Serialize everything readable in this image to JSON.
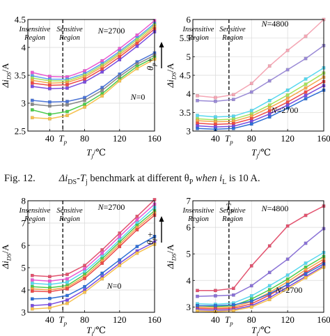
{
  "caption": {
    "fig_label": "Fig. 12.",
    "text_parts": [
      "Δi",
      "DS",
      "-T",
      "j",
      " benchmark at different θ",
      "P",
      " when i",
      "L",
      " is 10 A."
    ]
  },
  "chart_data": [
    {
      "type": "line",
      "ylabel": "Δi_DS/A",
      "xlabel": "T_j/℃",
      "xlim": [
        15,
        160
      ],
      "ylim": [
        2.5,
        4.5
      ],
      "yticks": [
        "2.5",
        "3",
        "3.5",
        "4",
        "4.5"
      ],
      "xticks": [
        "40",
        "T_p",
        "80",
        "120",
        "160"
      ],
      "tp": 55,
      "regions": [
        "Insensitive Region",
        "Sensitive Region"
      ],
      "annotations": [
        "N=2700",
        "N=0",
        "θ_p+"
      ],
      "x": [
        20,
        40,
        60,
        80,
        100,
        120,
        140,
        160
      ],
      "series": [
        {
          "color": "#e95ad2",
          "values": [
            3.55,
            3.48,
            3.47,
            3.58,
            3.76,
            3.98,
            4.22,
            4.48
          ]
        },
        {
          "color": "#5aa0f0",
          "values": [
            3.49,
            3.43,
            3.43,
            3.53,
            3.71,
            3.93,
            4.17,
            4.43
          ]
        },
        {
          "color": "#a6e35a",
          "values": [
            3.45,
            3.4,
            3.4,
            3.5,
            3.68,
            3.9,
            4.14,
            4.4
          ]
        },
        {
          "color": "#f5a74b",
          "values": [
            3.41,
            3.36,
            3.37,
            3.47,
            3.65,
            3.87,
            4.1,
            4.37
          ]
        },
        {
          "color": "#ee4a4a",
          "values": [
            3.36,
            3.32,
            3.33,
            3.43,
            3.61,
            3.83,
            4.07,
            4.33
          ]
        },
        {
          "color": "#7a4de0",
          "values": [
            3.3,
            3.26,
            3.27,
            3.38,
            3.56,
            3.78,
            4.02,
            4.28
          ]
        },
        {
          "color": "#4a73d6",
          "values": [
            3.05,
            3.02,
            3.03,
            3.1,
            3.28,
            3.52,
            3.74,
            3.9
          ]
        },
        {
          "color": "#888888",
          "values": [
            2.98,
            2.95,
            2.97,
            3.05,
            3.23,
            3.48,
            3.7,
            3.86
          ]
        },
        {
          "color": "#4ccc4c",
          "values": [
            2.88,
            2.8,
            2.85,
            2.98,
            3.17,
            3.43,
            3.66,
            3.82
          ]
        },
        {
          "color": "#f6c14f",
          "values": [
            2.74,
            2.72,
            2.78,
            2.93,
            3.13,
            3.4,
            3.62,
            3.79
          ]
        }
      ]
    },
    {
      "type": "line",
      "ylabel": "Δi_DS/A",
      "xlabel": "T_j/℃",
      "xlim": [
        15,
        160
      ],
      "ylim": [
        3,
        6
      ],
      "yticks": [
        "3",
        "3.5",
        "4",
        "4.5",
        "5",
        "5.5",
        "6"
      ],
      "xticks": [
        "40",
        "T_p",
        "80",
        "120",
        "160"
      ],
      "tp": 55,
      "regions": [
        "Insensitive Region",
        "Sensitive Region"
      ],
      "annotations": [
        "N=4800",
        "N=2700"
      ],
      "x": [
        20,
        40,
        60,
        80,
        100,
        120,
        140,
        160
      ],
      "series": [
        {
          "color": "#f4a6b4",
          "values": [
            3.95,
            3.9,
            3.98,
            4.28,
            4.75,
            5.17,
            5.55,
            6.0
          ]
        },
        {
          "color": "#9a8ad6",
          "values": [
            3.82,
            3.8,
            3.85,
            4.05,
            4.35,
            4.65,
            4.95,
            5.3
          ]
        },
        {
          "color": "#58d8ef",
          "values": [
            3.42,
            3.38,
            3.4,
            3.55,
            3.82,
            4.1,
            4.4,
            4.7
          ]
        },
        {
          "color": "#a6e35a",
          "values": [
            3.33,
            3.3,
            3.32,
            3.46,
            3.7,
            3.97,
            4.26,
            4.56
          ]
        },
        {
          "color": "#f5a74b",
          "values": [
            3.28,
            3.25,
            3.26,
            3.4,
            3.63,
            3.88,
            4.16,
            4.45
          ]
        },
        {
          "color": "#ee4a4a",
          "values": [
            3.21,
            3.18,
            3.2,
            3.33,
            3.54,
            3.78,
            4.05,
            4.33
          ]
        },
        {
          "color": "#7a4de0",
          "values": [
            3.14,
            3.11,
            3.13,
            3.26,
            3.46,
            3.7,
            3.96,
            4.22
          ]
        },
        {
          "color": "#2f6fd6",
          "values": [
            3.07,
            3.05,
            3.07,
            3.19,
            3.38,
            3.62,
            3.87,
            4.1
          ]
        }
      ]
    },
    {
      "type": "line",
      "ylabel": "Δi_DS/A",
      "xlabel": "T_j/℃",
      "xlim": [
        15,
        160
      ],
      "ylim": [
        3,
        8
      ],
      "yticks": [
        "3",
        "4",
        "5",
        "6",
        "7",
        "8"
      ],
      "xticks": [
        "40",
        "T_p",
        "80",
        "120",
        "160"
      ],
      "tp": 55,
      "regions": [
        "Insensitive Region",
        "Sensitive Region"
      ],
      "annotations": [
        "N=2700",
        "N=0",
        "θ_p+"
      ],
      "x": [
        20,
        40,
        60,
        80,
        100,
        120,
        140,
        160
      ],
      "series": [
        {
          "color": "#e2536f",
          "values": [
            4.65,
            4.6,
            4.7,
            5.1,
            5.8,
            6.55,
            7.3,
            8.05
          ]
        },
        {
          "color": "#e95ad2",
          "values": [
            4.45,
            4.4,
            4.5,
            4.95,
            5.65,
            6.4,
            7.15,
            7.85
          ]
        },
        {
          "color": "#58d8ef",
          "values": [
            4.3,
            4.25,
            4.35,
            4.82,
            5.5,
            6.25,
            7.0,
            7.7
          ]
        },
        {
          "color": "#4ccc4c",
          "values": [
            4.15,
            4.1,
            4.2,
            4.7,
            5.4,
            6.15,
            6.9,
            7.55
          ]
        },
        {
          "color": "#f5a74b",
          "values": [
            4.05,
            4.0,
            4.12,
            4.6,
            5.3,
            6.05,
            6.8,
            7.45
          ]
        },
        {
          "color": "#ee4a4a",
          "values": [
            3.95,
            3.92,
            4.05,
            4.52,
            5.2,
            5.95,
            6.7,
            7.35
          ]
        },
        {
          "color": "#2f6fd6",
          "values": [
            3.6,
            3.62,
            3.75,
            4.15,
            4.75,
            5.35,
            5.95,
            6.4
          ]
        },
        {
          "color": "#7a4de0",
          "values": [
            3.3,
            3.35,
            3.55,
            4.0,
            4.6,
            5.2,
            5.75,
            6.15
          ]
        },
        {
          "color": "#f6c14f",
          "values": [
            3.15,
            3.2,
            3.4,
            3.9,
            4.5,
            5.1,
            5.65,
            6.05
          ]
        }
      ]
    },
    {
      "type": "line",
      "ylabel": "Δi_DS/A",
      "xlabel": "T_j/℃",
      "xlim": [
        15,
        160
      ],
      "ylim": [
        2.8,
        7.0
      ],
      "yticks": [
        "3",
        "4",
        "5",
        "6",
        "7"
      ],
      "xticks": [
        "40",
        "T_p",
        "80",
        "120",
        "160"
      ],
      "tp": 55,
      "regions": [
        "Insensitive Region",
        "Sensitive Region"
      ],
      "annotations": [
        "T_p",
        "N=4800",
        "N=2700"
      ],
      "x": [
        20,
        40,
        60,
        80,
        100,
        120,
        140,
        160
      ],
      "series": [
        {
          "color": "#e2536f",
          "values": [
            3.62,
            3.62,
            3.7,
            4.55,
            5.3,
            6.05,
            6.45,
            6.8
          ]
        },
        {
          "color": "#8a72d6",
          "values": [
            3.4,
            3.42,
            3.45,
            3.8,
            4.3,
            4.8,
            5.4,
            5.95
          ]
        },
        {
          "color": "#58d8ef",
          "values": [
            3.12,
            3.1,
            3.15,
            3.42,
            3.8,
            4.2,
            4.65,
            5.05
          ]
        },
        {
          "color": "#4ccc4c",
          "values": [
            3.05,
            3.02,
            3.05,
            3.3,
            3.65,
            4.05,
            4.5,
            4.9
          ]
        },
        {
          "color": "#f5a74b",
          "values": [
            3.0,
            2.98,
            3.0,
            3.2,
            3.55,
            3.95,
            4.4,
            4.8
          ]
        },
        {
          "color": "#ee4a4a",
          "values": [
            2.95,
            2.93,
            2.95,
            3.12,
            3.45,
            3.85,
            4.3,
            4.7
          ]
        },
        {
          "color": "#2f6fd6",
          "values": [
            3.05,
            3.05,
            3.08,
            3.22,
            3.5,
            3.85,
            4.25,
            4.62
          ]
        },
        {
          "color": "#7a4de0",
          "values": [
            2.9,
            2.88,
            2.9,
            3.05,
            3.35,
            3.75,
            4.15,
            4.55
          ]
        },
        {
          "color": "#f6c14f",
          "values": [
            2.85,
            2.83,
            2.86,
            3.0,
            3.28,
            3.68,
            4.1,
            4.5
          ]
        }
      ]
    }
  ]
}
